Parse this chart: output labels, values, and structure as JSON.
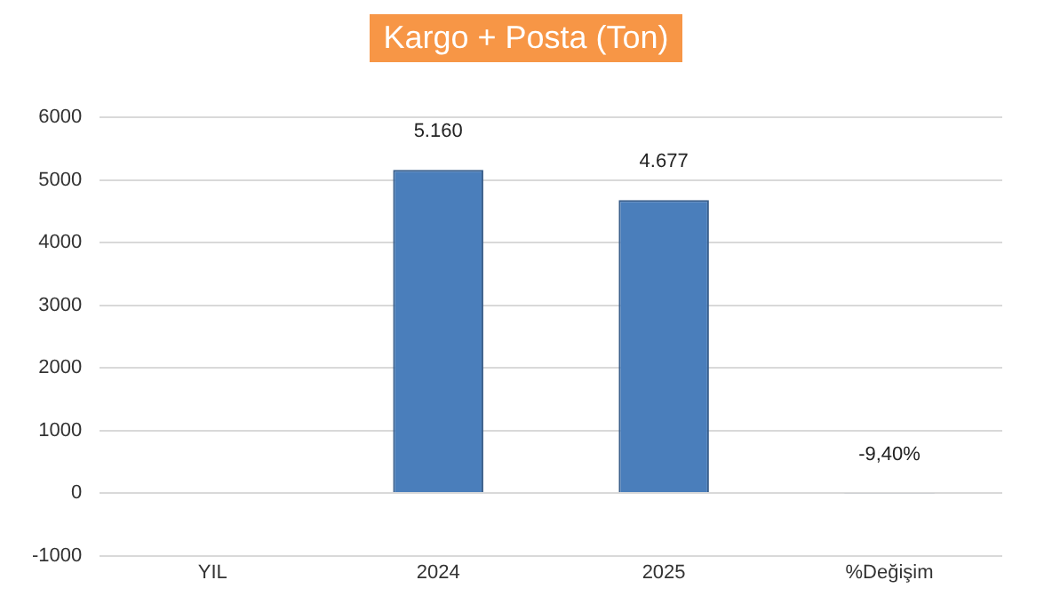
{
  "chart_data": {
    "type": "bar",
    "title": "Kargo + Posta (Ton)",
    "categories": [
      "YIL",
      "2024",
      "2025",
      "%Değişim"
    ],
    "values": [
      null,
      5160,
      4677,
      -9.4
    ],
    "value_labels": [
      null,
      "5.160",
      "4.677",
      "-9,40%"
    ],
    "color": "#4a7ebb",
    "ylim": [
      -1000,
      6000
    ],
    "yticks": [
      -1000,
      0,
      1000,
      2000,
      3000,
      4000,
      5000,
      6000
    ],
    "grid": "y",
    "legend": false
  }
}
